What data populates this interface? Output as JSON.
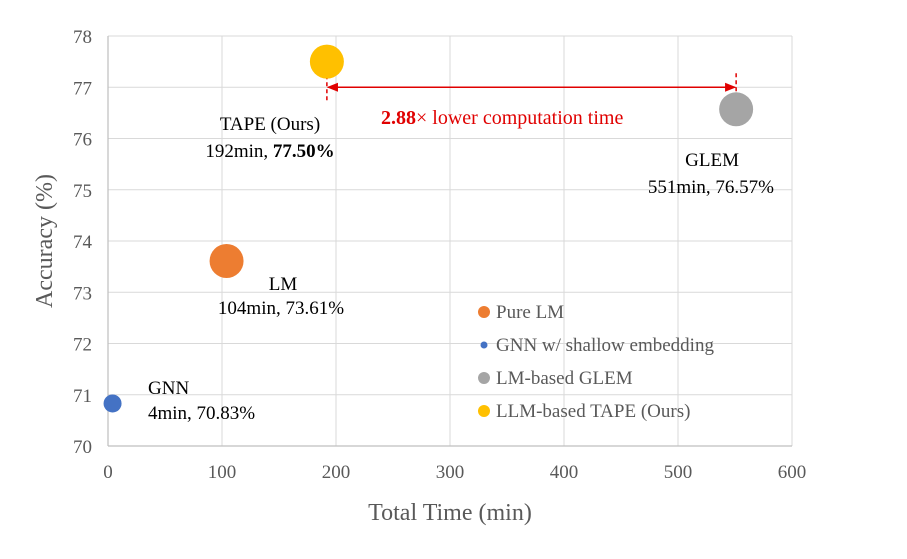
{
  "chart_data": {
    "type": "scatter",
    "xlabel": "Total Time (min)",
    "ylabel": "Accuracy (%)",
    "xlim": [
      0,
      600
    ],
    "ylim": [
      70,
      78
    ],
    "x_ticks": [
      0,
      100,
      200,
      300,
      400,
      500,
      600
    ],
    "y_ticks": [
      70,
      71,
      72,
      73,
      74,
      75,
      76,
      77,
      78
    ],
    "grid": true,
    "legend_position": "bottom-right",
    "series": [
      {
        "name": "Pure LM",
        "color": "#ed7d31",
        "size": "large",
        "points": [
          {
            "x": 104,
            "y": 73.61,
            "label_name": "LM",
            "label_value": "104min, 73.61%"
          }
        ]
      },
      {
        "name": "GNN  w/ shallow embedding",
        "color": "#4472c4",
        "size": "small",
        "points": [
          {
            "x": 4,
            "y": 70.83,
            "label_name": "GNN",
            "label_value": "4min, 70.83%"
          }
        ]
      },
      {
        "name": "LM-based GLEM",
        "color": "#a5a5a5",
        "size": "large",
        "points": [
          {
            "x": 551,
            "y": 76.57,
            "label_name": "GLEM",
            "label_value": "551min, 76.57%"
          }
        ]
      },
      {
        "name": "LLM-based TAPE (Ours)",
        "color": "#ffc000",
        "size": "large",
        "points": [
          {
            "x": 192,
            "y": 77.5,
            "label_name": "TAPE (Ours)",
            "label_value_plain": "192min, ",
            "label_value_bold": "77.50%"
          }
        ]
      }
    ],
    "annotation": {
      "from_x": 192,
      "to_x": 551,
      "at_y": 77.0,
      "bold_text": "2.88",
      "text": "× lower computation time",
      "color": "#e00000"
    }
  }
}
